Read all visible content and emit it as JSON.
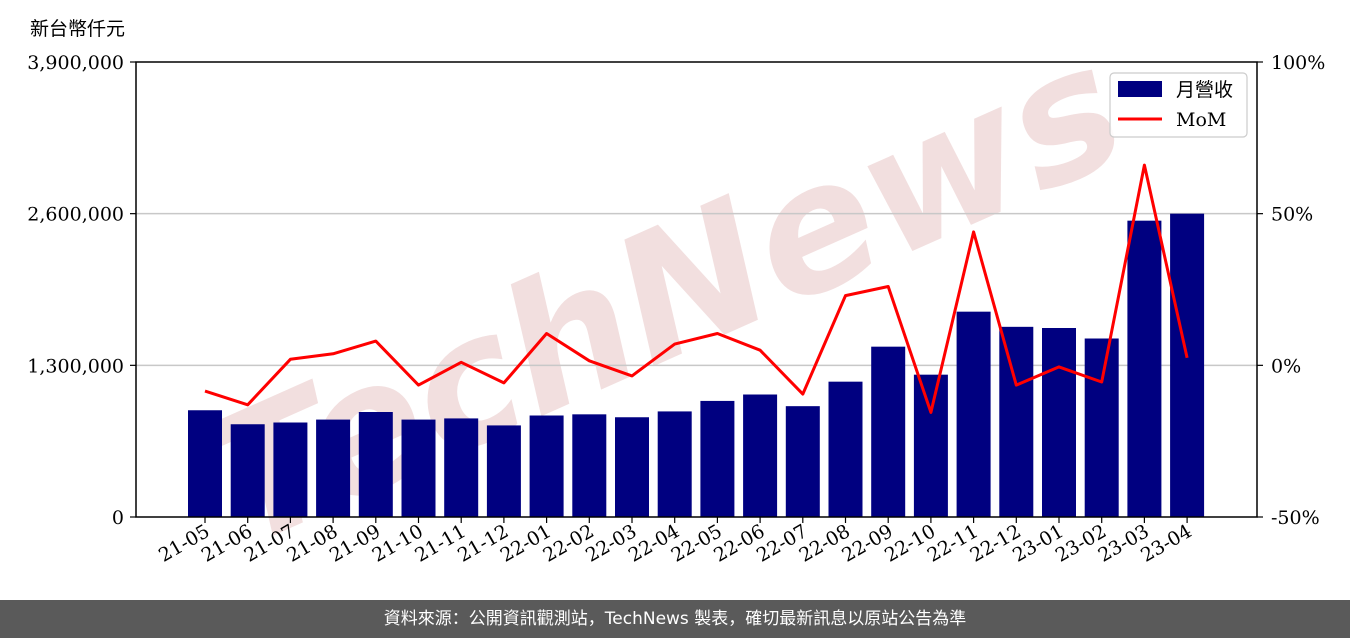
{
  "unit_label": "新台幣仟元",
  "watermark": "TechNews",
  "footer": "資料來源：公開資訊觀測站，TechNews 製表，確切最新訊息以原站公告為準",
  "colors": {
    "bar": "#000080",
    "line": "#ff0000",
    "watermark": "#e8c4c4",
    "footer_bg": "#5a5a5a"
  },
  "chart_data": {
    "type": "bar",
    "categories": [
      "21-05",
      "21-06",
      "21-07",
      "21-08",
      "21-09",
      "21-10",
      "21-11",
      "21-12",
      "22-01",
      "22-02",
      "22-03",
      "22-04",
      "22-05",
      "22-06",
      "22-07",
      "22-08",
      "22-09",
      "22-10",
      "22-11",
      "22-12",
      "23-01",
      "23-02",
      "23-03",
      "23-04"
    ],
    "series": [
      {
        "name": "月營收",
        "type": "bar",
        "axis": "left",
        "values": [
          915000,
          795000,
          810000,
          835000,
          900000,
          835000,
          845000,
          785000,
          870000,
          880000,
          855000,
          905000,
          995000,
          1050000,
          950000,
          1160000,
          1460000,
          1220000,
          1760000,
          1630000,
          1620000,
          1530000,
          2540000,
          2600000
        ]
      },
      {
        "name": "MoM",
        "type": "line",
        "axis": "right",
        "unit": "%",
        "values": [
          -8.5,
          -13,
          2,
          3.8,
          8,
          -6.5,
          1,
          -5.8,
          10.5,
          1.5,
          -3.5,
          7,
          10.5,
          5,
          -9.5,
          23,
          26,
          -15.5,
          44,
          -6.5,
          -0.5,
          -5.5,
          66,
          2.5
        ]
      }
    ],
    "ylim_left": [
      0,
      3900000
    ],
    "yticks_left": [
      "0",
      "1,300,000",
      "2,600,000",
      "3,900,000"
    ],
    "ylim_right": [
      -50,
      100
    ],
    "yticks_right": [
      "-50%",
      "0%",
      "50%",
      "100%"
    ],
    "grid": "horizontal",
    "legend": {
      "position": "top-right",
      "entries": [
        "月營收",
        "MoM"
      ]
    }
  }
}
